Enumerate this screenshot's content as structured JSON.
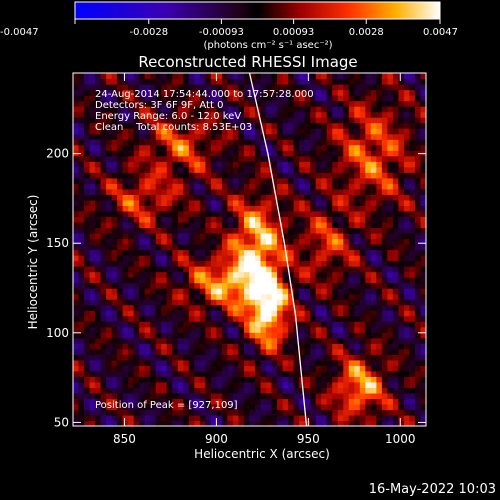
{
  "colorbar": {
    "ticks": [
      "-0.0047",
      "-0.0028",
      "-0.00093",
      "0.00093",
      "0.0028",
      "0.0047"
    ],
    "tick_values": [
      -0.0047,
      -0.0028,
      -0.00093,
      0.00093,
      0.0028,
      0.0047
    ],
    "range": [
      -0.0047,
      0.0047
    ],
    "unit_label": "(photons cm⁻² s⁻¹ asec⁻²)"
  },
  "chart_data": {
    "type": "heatmap",
    "title": "Reconstructed RHESSI Image",
    "xlabel": "Heliocentric X (arcsec)",
    "ylabel": "Heliocentric Y (arcsec)",
    "xlim": [
      822,
      1014
    ],
    "ylim": [
      48,
      245
    ],
    "xticks": [
      850,
      900,
      950,
      1000
    ],
    "yticks": [
      50,
      100,
      150,
      200
    ],
    "annotations": [
      "24-Aug-2014 17:54:44.000 to 17:57:28.000",
      "Detectors: 3F 6F 9F, Att 0",
      "Energy Range: 6.0 - 12.0 keV",
      "Clean    Total counts: 8.53E+03"
    ],
    "peak_label": "Position of Peak = [927,109]",
    "peak": [
      927,
      109
    ],
    "limb": [
      [
        918,
        245
      ],
      [
        928,
        200
      ],
      [
        937,
        150
      ],
      [
        943,
        110
      ],
      [
        949,
        48
      ]
    ],
    "sources": [
      {
        "x": 922,
        "y": 150,
        "level": 0.85,
        "sx": 10,
        "sy": 18
      },
      {
        "x": 928,
        "y": 112,
        "level": 1.0,
        "sx": 8,
        "sy": 14
      },
      {
        "x": 905,
        "y": 128,
        "level": 0.7,
        "sx": 16,
        "sy": 10
      },
      {
        "x": 978,
        "y": 70,
        "level": 0.75,
        "sx": 10,
        "sy": 12
      },
      {
        "x": 985,
        "y": 200,
        "level": 0.55,
        "sx": 14,
        "sy": 20
      },
      {
        "x": 860,
        "y": 175,
        "level": 0.45,
        "sx": 14,
        "sy": 10
      },
      {
        "x": 880,
        "y": 205,
        "level": 0.5,
        "sx": 14,
        "sy": 12
      },
      {
        "x": 960,
        "y": 150,
        "level": 0.45,
        "sx": 10,
        "sy": 14
      }
    ]
  },
  "footer": {
    "timestamp": "16-May-2022 10:03"
  }
}
